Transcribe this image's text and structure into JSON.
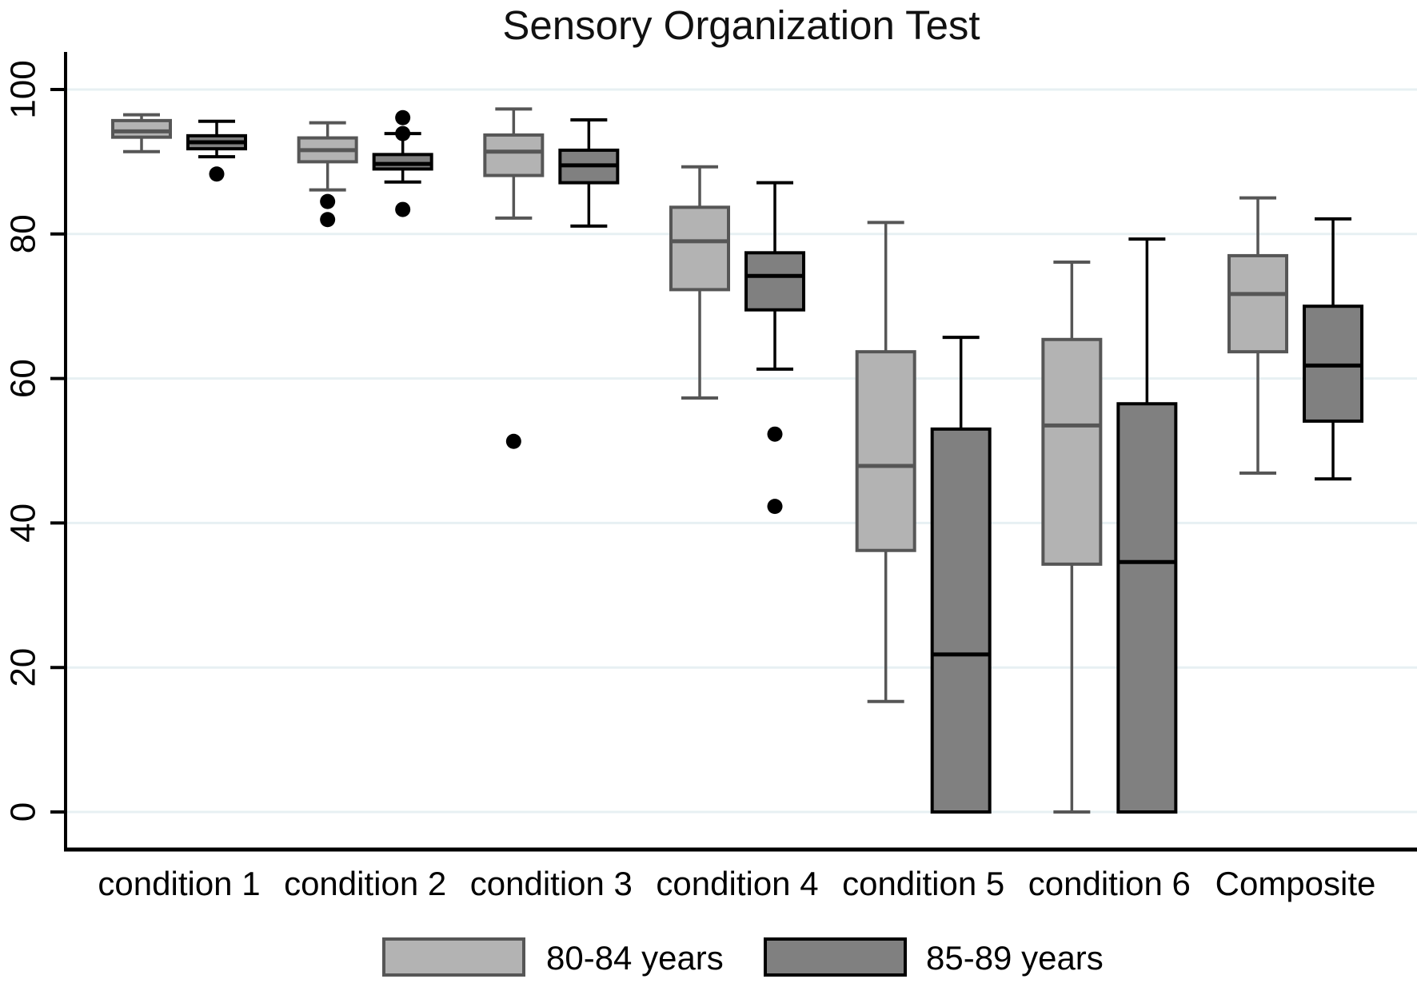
{
  "title": "Sensory Organization Test",
  "chart_data": {
    "type": "boxplot",
    "title": "Sensory Organization Test",
    "categories": [
      "condition 1",
      "condition 2",
      "condition 3",
      "condition 4",
      "condition 5",
      "condition 6",
      "Composite"
    ],
    "ylim": [
      0,
      100
    ],
    "yticks": [
      0,
      20,
      40,
      60,
      80,
      100
    ],
    "grid": true,
    "grid_color": "#e7f0f3",
    "axis_color": "#000000",
    "outlier_color": "#000000",
    "legend_position": "bottom",
    "series": [
      {
        "name": "80-84 years",
        "fill": "#b3b3b3",
        "stroke": "#565656",
        "boxes": [
          {
            "low": 91.4,
            "q1": 93.4,
            "median": 94.2,
            "q3": 95.7,
            "high": 96.5,
            "outliers": []
          },
          {
            "low": 86.1,
            "q1": 90.0,
            "median": 91.6,
            "q3": 93.3,
            "high": 95.4,
            "outliers": [
              84.5,
              82.0
            ]
          },
          {
            "low": 82.2,
            "q1": 88.1,
            "median": 91.4,
            "q3": 93.7,
            "high": 97.3,
            "outliers": [
              51.3
            ]
          },
          {
            "low": 57.3,
            "q1": 72.3,
            "median": 79.0,
            "q3": 83.7,
            "high": 89.3,
            "outliers": []
          },
          {
            "low": 15.3,
            "q1": 36.2,
            "median": 47.9,
            "q3": 63.7,
            "high": 81.6,
            "outliers": []
          },
          {
            "low": 0,
            "q1": 34.3,
            "median": 53.5,
            "q3": 65.4,
            "high": 76.1,
            "outliers": []
          },
          {
            "low": 46.9,
            "q1": 63.7,
            "median": 71.7,
            "q3": 77.0,
            "high": 85.0,
            "outliers": []
          }
        ]
      },
      {
        "name": "85-89 years",
        "fill": "#808080",
        "stroke": "#000000",
        "boxes": [
          {
            "low": 90.7,
            "q1": 91.8,
            "median": 92.7,
            "q3": 93.6,
            "high": 95.6,
            "outliers": [
              88.3
            ]
          },
          {
            "low": 87.2,
            "q1": 89.0,
            "median": 89.7,
            "q3": 91.0,
            "high": 93.9,
            "outliers": [
              96.1,
              93.9,
              83.4
            ]
          },
          {
            "low": 81.1,
            "q1": 87.1,
            "median": 89.5,
            "q3": 91.6,
            "high": 95.8,
            "outliers": []
          },
          {
            "low": 61.3,
            "q1": 69.5,
            "median": 74.2,
            "q3": 77.4,
            "high": 87.1,
            "outliers": [
              52.3,
              42.3
            ]
          },
          {
            "low": 0,
            "q1": 0,
            "median": 21.8,
            "q3": 53.0,
            "high": 65.7,
            "outliers": []
          },
          {
            "low": 0,
            "q1": 0,
            "median": 34.6,
            "q3": 56.5,
            "high": 79.3,
            "outliers": []
          },
          {
            "low": 46.1,
            "q1": 54.1,
            "median": 61.8,
            "q3": 70.0,
            "high": 82.1,
            "outliers": []
          }
        ]
      }
    ]
  },
  "legend": {
    "items": [
      {
        "label": "80-84 years",
        "fill": "#b3b3b3",
        "border": "#565656"
      },
      {
        "label": "85-89 years",
        "fill": "#808080",
        "border": "#000000"
      }
    ]
  }
}
